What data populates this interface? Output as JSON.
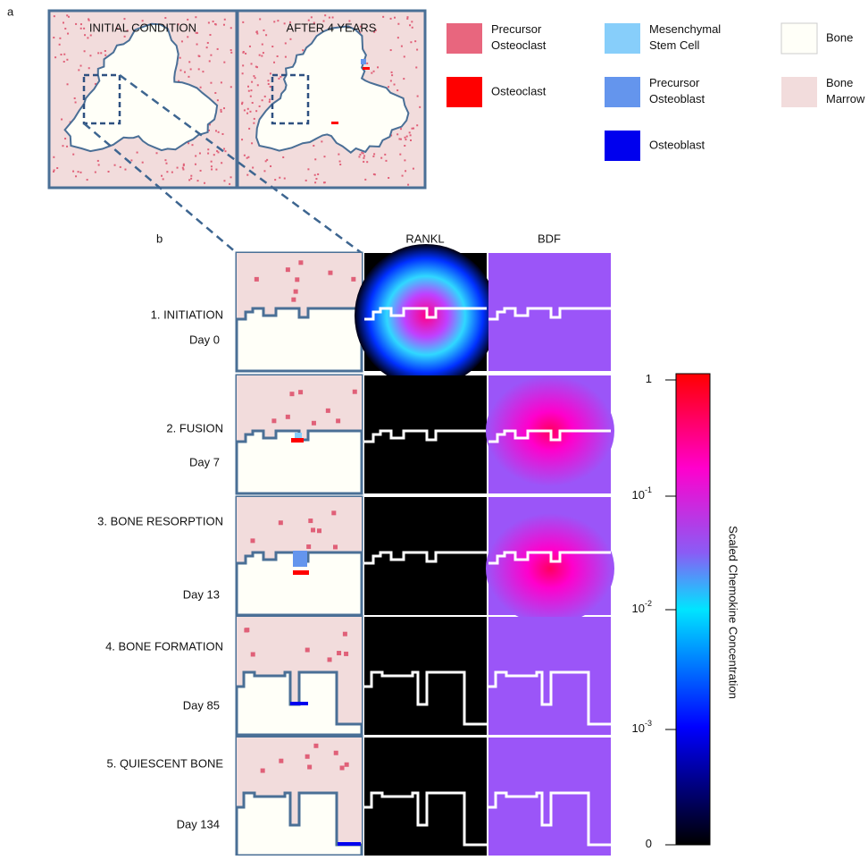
{
  "panel_a": {
    "label": "a",
    "left_title": "INITIAL CONDITION",
    "right_title": "AFTER 4 YEARS"
  },
  "legend": [
    {
      "label": "Precursor Osteoclast",
      "color": "#e8667e"
    },
    {
      "label": "Osteoclast",
      "color": "#ff0000"
    },
    {
      "label": "Mesenchymal Stem Cell",
      "color": "#87cefa"
    },
    {
      "label": "Precursor Osteoblast",
      "color": "#6495ed"
    },
    {
      "label": "Osteoblast",
      "color": "#0000ee"
    },
    {
      "label": "Bone",
      "color": "#fffff8"
    },
    {
      "label": "Bone Marrow",
      "color": "#f2dcdc"
    }
  ],
  "panel_b": {
    "label": "b",
    "col_rankl": "RANKL",
    "col_bdf": "BDF",
    "stages": [
      {
        "name": "1. INITIATION",
        "day": "Day 0"
      },
      {
        "name": "2. FUSION",
        "day": "Day 7"
      },
      {
        "name": "3. BONE  RESORPTION",
        "day": "Day 13"
      },
      {
        "name": "4. BONE FORMATION",
        "day": "Day 85"
      },
      {
        "name": "5. QUIESCENT BONE",
        "day": "Day 134"
      }
    ]
  },
  "colorbar": {
    "title": "Scaled Chemokine Concentration",
    "ticks": [
      {
        "base": "1"
      },
      {
        "base": "10",
        "exponent": "-1"
      },
      {
        "base": "10",
        "exponent": "-2"
      },
      {
        "base": "10",
        "exponent": "-3"
      },
      {
        "base": "0"
      }
    ]
  }
}
